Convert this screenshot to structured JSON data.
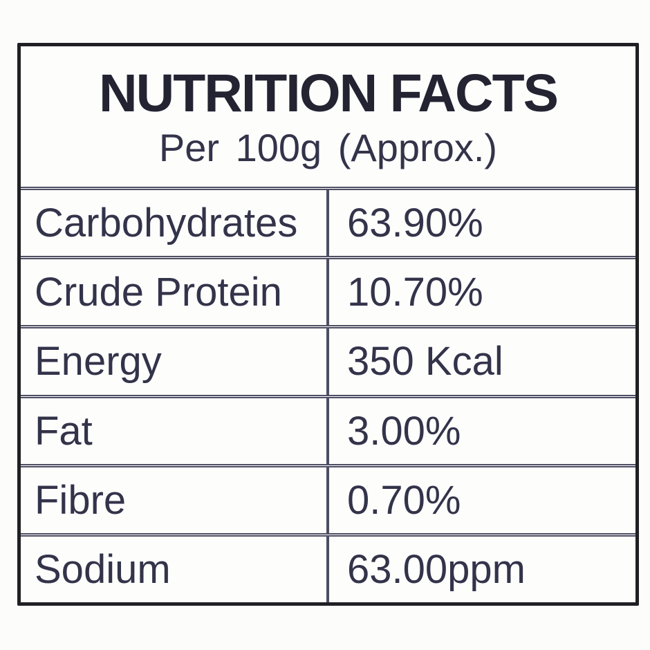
{
  "header": {
    "title": "NUTRITION FACTS",
    "subtitle": "Per 100g (Approx.)"
  },
  "table": {
    "rows": [
      {
        "label": "Carbohydrates",
        "value": "63.90%"
      },
      {
        "label": "Crude Protein",
        "value": "10.70%"
      },
      {
        "label": "Energy",
        "value": "350 Kcal"
      },
      {
        "label": "Fat",
        "value": "3.00%"
      },
      {
        "label": "Fibre",
        "value": "0.70%"
      },
      {
        "label": "Sodium",
        "value": "63.00ppm"
      }
    ]
  },
  "colors": {
    "ink": "#33334a",
    "title_ink": "#232332",
    "grid_line": "#4d4d63",
    "outer_border": "#202024",
    "background": "#fdfdfc"
  }
}
